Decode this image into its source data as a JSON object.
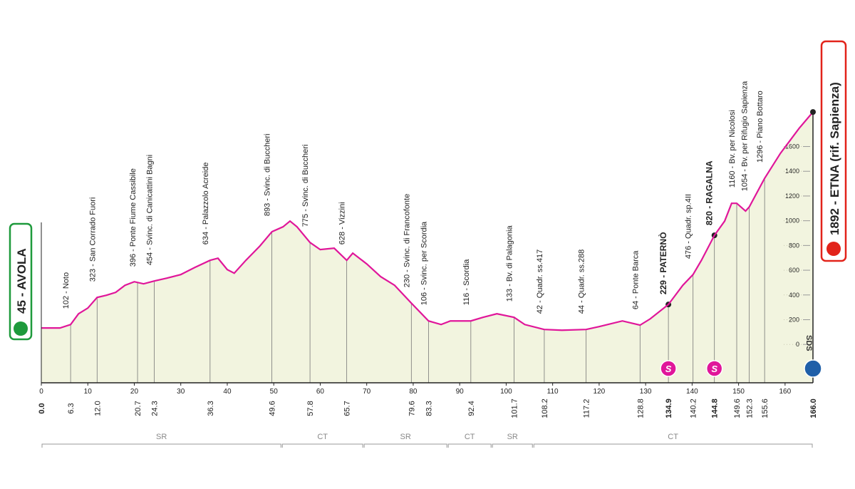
{
  "chart_data": {
    "type": "area",
    "color": "#e0169a",
    "fill": "#f2f4df",
    "start": {
      "label": "45 - AVOLA",
      "km": {
        "value": 0,
        "label": "0.0"
      },
      "color": "#1e9a3c"
    },
    "finish": {
      "label": "1892 - ETNA (rif. Sapienza)",
      "km": {
        "value": 166,
        "label": "166.0"
      },
      "color": "#e2231a"
    },
    "profile": {
      "x": [
        0,
        4,
        6.3,
        8,
        10,
        12,
        14,
        16,
        18,
        20,
        22,
        24.3,
        27,
        30,
        33,
        36.3,
        38,
        40,
        41.5,
        44,
        47,
        49.6,
        52,
        53.5,
        55,
        57.8,
        60,
        63,
        65.7,
        67,
        70,
        73,
        76,
        79.6,
        83.3,
        86,
        88,
        90,
        92.4,
        95,
        98,
        101.7,
        104,
        108.2,
        112,
        117.2,
        120,
        125,
        128.8,
        131,
        134.9,
        138,
        140.2,
        142,
        144.8,
        147,
        148.5,
        149.6,
        151.5,
        152.3,
        155.6,
        159,
        163,
        166
      ],
      "values": [
        133,
        133,
        161,
        248,
        294,
        380,
        398,
        421,
        478,
        507,
        490,
        513,
        536,
        565,
        622,
        680,
        697,
        605,
        576,
        680,
        795,
        911,
        951,
        997,
        951,
        824,
        767,
        778,
        680,
        738,
        651,
        548,
        478,
        334,
        190,
        161,
        190,
        190,
        190,
        219,
        248,
        219,
        161,
        121,
        115,
        121,
        144,
        190,
        156,
        207,
        323,
        478,
        565,
        680,
        882,
        997,
        1141,
        1141,
        1078,
        1112,
        1343,
        1545,
        1746,
        1879
      ]
    },
    "waypoints": [
      {
        "km": 6.3,
        "label": "102 - Noto"
      },
      {
        "km": {
          "value": 12,
          "label": "12.0"
        },
        "label": "323 - San Corrado Fuori"
      },
      {
        "km": 20.7,
        "label": "396 - Ponte Fiume Cassibile"
      },
      {
        "km": 24.3,
        "label": "454 - Svinc. di Canicattini Bagni"
      },
      {
        "km": 36.3,
        "label": "634 - Palazzolo Acreide"
      },
      {
        "km": 49.6,
        "label": "893 - Svinc. di Buccheri"
      },
      {
        "km": 57.8,
        "label": "775 - Svinc. di Buccheri"
      },
      {
        "km": 65.7,
        "label": "628 - Vizzini"
      },
      {
        "km": 79.6,
        "label": "230 - Svinc. di Francofonte"
      },
      {
        "km": 83.3,
        "label": "106 - Svinc. per Scordia"
      },
      {
        "km": 92.4,
        "label": "116 - Scordia"
      },
      {
        "km": 101.7,
        "label": "133 - Bv. di Palagonia"
      },
      {
        "km": 108.2,
        "label": "42 - Quadr. ss.417"
      },
      {
        "km": 117.2,
        "label": "44 - Quadr. ss.288"
      },
      {
        "km": 128.8,
        "label": "64 - Ponte Barca"
      },
      {
        "km": 134.9,
        "label": "229 - PATERNÒ",
        "bold": true,
        "sprint": "S"
      },
      {
        "km": 140.2,
        "label": "476 - Quadr. sp.4II"
      },
      {
        "km": 144.8,
        "label": "820 - RAGALNA",
        "bold": true,
        "sprint": "S"
      },
      {
        "km": 149.6,
        "label": "1160 - Bv. per Nicolosi"
      },
      {
        "km": 152.3,
        "label": "1054 - Bv. per Rifugio Sapienza"
      },
      {
        "km": 155.6,
        "label": "1296 - Piano Bottaro"
      }
    ],
    "xlim": [
      0,
      166
    ],
    "xticks": [
      0,
      10,
      20,
      30,
      40,
      50,
      60,
      70,
      80,
      90,
      100,
      110,
      120,
      130,
      140,
      150,
      160
    ],
    "ylim": [
      -310,
      2600
    ],
    "yticks": [
      0,
      200,
      400,
      600,
      800,
      1000,
      1200,
      1400,
      1600
    ],
    "regions": [
      {
        "name": "SR",
        "start": 0,
        "end": 51.7
      },
      {
        "name": "CT",
        "start": 51.7,
        "end": 69.3
      },
      {
        "name": "SR",
        "start": 69.3,
        "end": 87.4
      },
      {
        "name": "CT",
        "start": 87.4,
        "end": 96.9
      },
      {
        "name": "SR",
        "start": 96.9,
        "end": 105.8
      },
      {
        "name": "CT",
        "start": 105.8,
        "end": 166
      }
    ],
    "logo": "SDS"
  }
}
